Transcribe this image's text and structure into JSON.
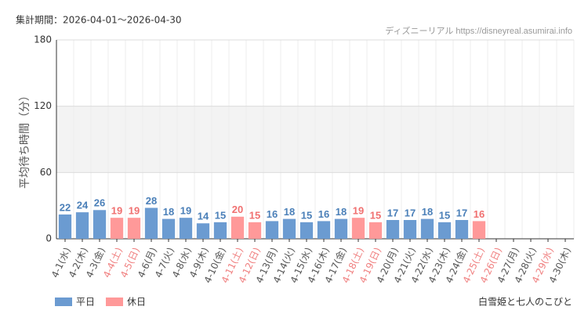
{
  "chart_data": {
    "type": "bar",
    "period": "集計期間：2026-04-01～2026-04-30",
    "source": "ディズニーリアル https://disneyreal.asumirai.info",
    "attraction": "白雪姫と七人のこびと",
    "y_label": "平均待ち時間（分）",
    "categories": [
      "4-1(水)",
      "4-2(木)",
      "4-3(金)",
      "4-4(土)",
      "4-5(日)",
      "4-6(月)",
      "4-7(火)",
      "4-8(水)",
      "4-9(木)",
      "4-10(金)",
      "4-11(土)",
      "4-12(日)",
      "4-13(月)",
      "4-14(火)",
      "4-15(水)",
      "4-16(木)",
      "4-17(金)",
      "4-18(土)",
      "4-19(日)",
      "4-20(月)",
      "4-21(火)",
      "4-22(水)",
      "4-23(木)",
      "4-24(金)",
      "4-25(土)",
      "4-26(日)",
      "4-27(月)",
      "4-28(火)",
      "4-29(水)",
      "4-30(木)"
    ],
    "category_colors": [
      "#555",
      "#555",
      "#555",
      "#f08080",
      "#f08080",
      "#555",
      "#555",
      "#555",
      "#555",
      "#555",
      "#f08080",
      "#f08080",
      "#555",
      "#555",
      "#555",
      "#555",
      "#555",
      "#f08080",
      "#f08080",
      "#555",
      "#555",
      "#555",
      "#555",
      "#555",
      "#f08080",
      "#f08080",
      "#555",
      "#555",
      "#f08080",
      "#555"
    ],
    "series": [
      {
        "name": "平日",
        "color": "#6b9bd1",
        "label_color": "#4a7fb8",
        "values": [
          22,
          24,
          26,
          null,
          null,
          28,
          18,
          19,
          14,
          15,
          null,
          null,
          16,
          18,
          15,
          16,
          18,
          null,
          null,
          17,
          17,
          18,
          15,
          17,
          null,
          null,
          null,
          null,
          null,
          null
        ]
      },
      {
        "name": "休日",
        "color": "#ff9999",
        "label_color": "#f07070",
        "values": [
          null,
          null,
          null,
          19,
          19,
          null,
          null,
          null,
          null,
          null,
          20,
          15,
          null,
          null,
          null,
          null,
          null,
          19,
          15,
          null,
          null,
          null,
          null,
          null,
          16,
          null,
          null,
          null,
          null,
          null
        ]
      }
    ],
    "ylim": [
      0,
      180
    ],
    "yticks": [
      0,
      60,
      120,
      180
    ],
    "grid": true
  }
}
